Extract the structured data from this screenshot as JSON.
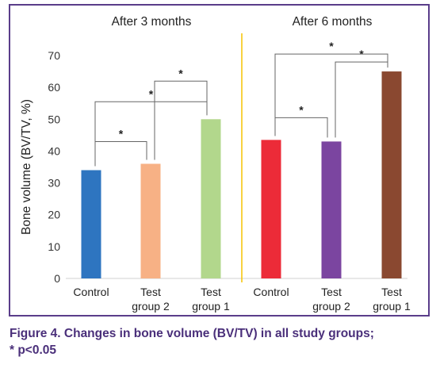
{
  "chart_data": {
    "type": "bar",
    "ylabel": "Bone volume (BV/TV, %)",
    "ylim": [
      0,
      70
    ],
    "yticks": [
      0,
      10,
      20,
      30,
      40,
      50,
      60,
      70
    ],
    "grid": false,
    "panels": [
      {
        "title": "After 3 months",
        "categories": [
          [
            "Control"
          ],
          [
            "Test",
            "group 2"
          ],
          [
            "Test",
            "group 1"
          ]
        ],
        "values": [
          34,
          36,
          50
        ],
        "colors": [
          "#2e75c0",
          "#f7b185",
          "#b2d78c"
        ],
        "brackets": [
          {
            "from": 0,
            "to": 1,
            "label": "*"
          },
          {
            "from": 1,
            "to": 2,
            "label": "*"
          },
          {
            "from": 0,
            "to": 2,
            "label": "*"
          }
        ]
      },
      {
        "title": "After 6 months",
        "categories": [
          [
            "Control"
          ],
          [
            "Test",
            "group 2"
          ],
          [
            "Test",
            "group 1"
          ]
        ],
        "values": [
          43.5,
          43,
          65
        ],
        "colors": [
          "#ec2b38",
          "#7b45a0",
          "#8a4830"
        ],
        "brackets": [
          {
            "from": 0,
            "to": 1,
            "label": "*"
          },
          {
            "from": 1,
            "to": 2,
            "label": "*"
          },
          {
            "from": 0,
            "to": 2,
            "label": "*"
          }
        ]
      }
    ],
    "divider_color": "#f5c400"
  },
  "caption": {
    "line1": "Figure 4. Changes in bone volume (BV/TV) in all study groups;",
    "line2": "* p<0.05"
  }
}
